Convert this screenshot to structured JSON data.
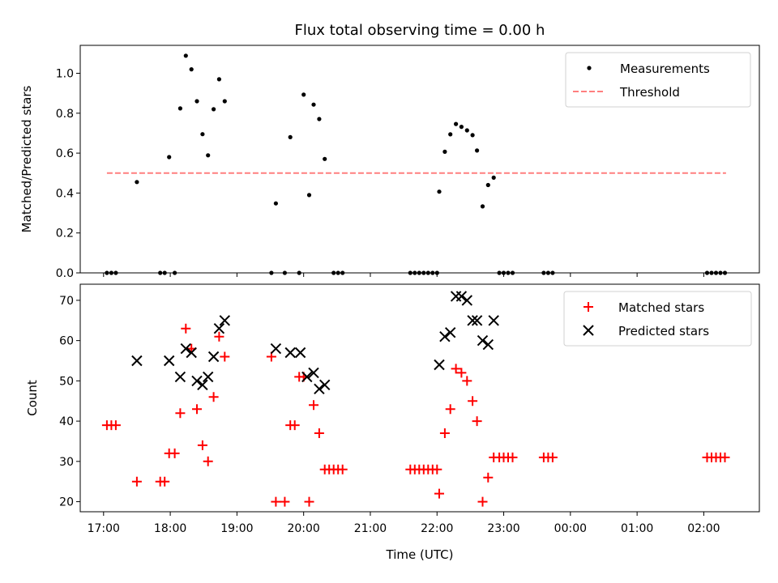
{
  "chart_data": [
    {
      "type": "scatter",
      "title": "Flux total observing time = 0.00 h",
      "xlabel": "",
      "ylabel": "Matched/Predicted stars",
      "ylim": [
        0.0,
        1.14
      ],
      "yticks": [
        "0.0",
        "0.2",
        "0.4",
        "0.6",
        "0.8",
        "1.0"
      ],
      "legend_position": "top-right",
      "series": [
        {
          "name": "Measurements",
          "style": "point",
          "color": "#000000",
          "points": [
            [
              "17:03",
              0.0
            ],
            [
              "17:07",
              0.0
            ],
            [
              "17:11",
              0.0
            ],
            [
              "17:30",
              0.455
            ],
            [
              "17:51",
              0.0
            ],
            [
              "17:55",
              0.0
            ],
            [
              "17:59",
              0.58
            ],
            [
              "18:04",
              0.0
            ],
            [
              "18:09",
              0.824
            ],
            [
              "18:14",
              1.088
            ],
            [
              "18:19",
              1.02
            ],
            [
              "18:24",
              0.86
            ],
            [
              "18:29",
              0.695
            ],
            [
              "18:34",
              0.589
            ],
            [
              "18:39",
              0.82
            ],
            [
              "18:44",
              0.97
            ],
            [
              "18:49",
              0.86
            ],
            [
              "19:31",
              0.0
            ],
            [
              "19:35",
              0.348
            ],
            [
              "19:43",
              0.0
            ],
            [
              "19:48",
              0.68
            ],
            [
              "19:56",
              0.0
            ],
            [
              "20:00",
              0.893
            ],
            [
              "20:05",
              0.39
            ],
            [
              "20:09",
              0.843
            ],
            [
              "20:14",
              0.771
            ],
            [
              "20:19",
              0.571
            ],
            [
              "20:27",
              0.0
            ],
            [
              "20:31",
              0.0
            ],
            [
              "20:35",
              0.0
            ],
            [
              "21:36",
              0.0
            ],
            [
              "21:40",
              0.0
            ],
            [
              "21:44",
              0.0
            ],
            [
              "21:48",
              0.0
            ],
            [
              "21:52",
              0.0
            ],
            [
              "21:56",
              0.0
            ],
            [
              "22:00",
              0.0
            ],
            [
              "22:02",
              0.407
            ],
            [
              "22:07",
              0.607
            ],
            [
              "22:12",
              0.694
            ],
            [
              "22:17",
              0.746
            ],
            [
              "22:22",
              0.732
            ],
            [
              "22:27",
              0.714
            ],
            [
              "22:32",
              0.69
            ],
            [
              "22:36",
              0.613
            ],
            [
              "22:41",
              0.333
            ],
            [
              "22:46",
              0.44
            ],
            [
              "22:51",
              0.477
            ],
            [
              "22:56",
              0.0
            ],
            [
              "23:00",
              0.0
            ],
            [
              "23:04",
              0.0
            ],
            [
              "23:08",
              0.0
            ],
            [
              "23:36",
              0.0
            ],
            [
              "23:40",
              0.0
            ],
            [
              "23:44",
              0.0
            ],
            [
              "02:03",
              0.0
            ],
            [
              "02:07",
              0.0
            ],
            [
              "02:11",
              0.0
            ],
            [
              "02:15",
              0.0
            ],
            [
              "02:19",
              0.0
            ]
          ]
        },
        {
          "name": "Threshold",
          "style": "dashed-line",
          "color": "#ff7f7f",
          "points": [
            [
              "17:03",
              0.5
            ],
            [
              "02:20",
              0.5
            ]
          ]
        }
      ]
    },
    {
      "type": "scatter",
      "title": "",
      "xlabel": "Time (UTC)",
      "ylabel": "Count",
      "ylim": [
        17.5,
        74
      ],
      "yticks": [
        "20",
        "30",
        "40",
        "50",
        "60",
        "70"
      ],
      "xlim": [
        "16:39",
        "02:50"
      ],
      "xticks": [
        "17:00",
        "18:00",
        "19:00",
        "20:00",
        "21:00",
        "22:00",
        "23:00",
        "00:00",
        "01:00",
        "02:00"
      ],
      "legend_position": "top-right",
      "series": [
        {
          "name": "Matched stars",
          "style": "plus",
          "color": "#ff0000",
          "points": [
            [
              "17:03",
              39
            ],
            [
              "17:07",
              39
            ],
            [
              "17:11",
              39
            ],
            [
              "17:30",
              25
            ],
            [
              "17:51",
              25
            ],
            [
              "17:55",
              25
            ],
            [
              "17:59",
              32
            ],
            [
              "18:04",
              32
            ],
            [
              "18:09",
              42
            ],
            [
              "18:14",
              63
            ],
            [
              "18:19",
              58
            ],
            [
              "18:24",
              43
            ],
            [
              "18:29",
              34
            ],
            [
              "18:34",
              30
            ],
            [
              "18:39",
              46
            ],
            [
              "18:44",
              61
            ],
            [
              "18:49",
              56
            ],
            [
              "19:31",
              56
            ],
            [
              "19:35",
              20
            ],
            [
              "19:43",
              20
            ],
            [
              "19:48",
              39
            ],
            [
              "19:52",
              39
            ],
            [
              "19:56",
              51
            ],
            [
              "20:00",
              51
            ],
            [
              "20:05",
              20
            ],
            [
              "20:09",
              44
            ],
            [
              "20:14",
              37
            ],
            [
              "20:19",
              28
            ],
            [
              "20:23",
              28
            ],
            [
              "20:27",
              28
            ],
            [
              "20:31",
              28
            ],
            [
              "20:35",
              28
            ],
            [
              "21:36",
              28
            ],
            [
              "21:40",
              28
            ],
            [
              "21:44",
              28
            ],
            [
              "21:48",
              28
            ],
            [
              "21:52",
              28
            ],
            [
              "21:56",
              28
            ],
            [
              "22:00",
              28
            ],
            [
              "22:02",
              22
            ],
            [
              "22:07",
              37
            ],
            [
              "22:12",
              43
            ],
            [
              "22:17",
              53
            ],
            [
              "22:22",
              52
            ],
            [
              "22:27",
              50
            ],
            [
              "22:32",
              45
            ],
            [
              "22:36",
              40
            ],
            [
              "22:41",
              20
            ],
            [
              "22:46",
              26
            ],
            [
              "22:51",
              31
            ],
            [
              "22:56",
              31
            ],
            [
              "23:00",
              31
            ],
            [
              "23:04",
              31
            ],
            [
              "23:08",
              31
            ],
            [
              "23:36",
              31
            ],
            [
              "23:40",
              31
            ],
            [
              "23:44",
              31
            ],
            [
              "02:03",
              31
            ],
            [
              "02:07",
              31
            ],
            [
              "02:11",
              31
            ],
            [
              "02:15",
              31
            ],
            [
              "02:19",
              31
            ]
          ]
        },
        {
          "name": "Predicted stars",
          "style": "x",
          "color": "#000000",
          "points": [
            [
              "17:30",
              55
            ],
            [
              "17:59",
              55
            ],
            [
              "18:09",
              51
            ],
            [
              "18:14",
              58
            ],
            [
              "18:19",
              57
            ],
            [
              "18:24",
              50
            ],
            [
              "18:29",
              49
            ],
            [
              "18:34",
              51
            ],
            [
              "18:39",
              56
            ],
            [
              "18:44",
              63
            ],
            [
              "18:49",
              65
            ],
            [
              "19:35",
              58
            ],
            [
              "19:48",
              57
            ],
            [
              "19:57",
              57
            ],
            [
              "20:03",
              51
            ],
            [
              "20:09",
              52
            ],
            [
              "20:14",
              48
            ],
            [
              "20:19",
              49
            ],
            [
              "22:02",
              54
            ],
            [
              "22:07",
              61
            ],
            [
              "22:12",
              62
            ],
            [
              "22:17",
              71
            ],
            [
              "22:22",
              71
            ],
            [
              "22:27",
              70
            ],
            [
              "22:32",
              65
            ],
            [
              "22:36",
              65
            ],
            [
              "22:41",
              60
            ],
            [
              "22:46",
              59
            ],
            [
              "22:51",
              65
            ]
          ]
        }
      ]
    }
  ]
}
